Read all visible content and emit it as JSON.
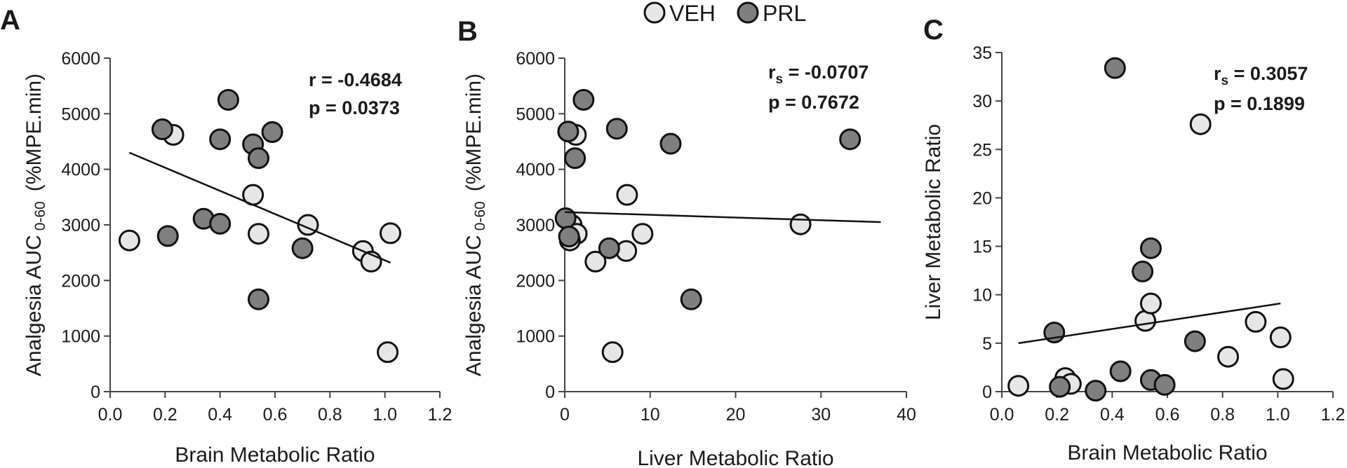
{
  "legend": [
    {
      "label": "VEH",
      "color": "#e6e6e6"
    },
    {
      "label": "PRL",
      "color": "#7f7f7f"
    }
  ],
  "chart_data": [
    {
      "panel": "A",
      "type": "scatter",
      "xlabel": "Brain Metabolic Ratio",
      "ylabel_main": "Analgesia AUC",
      "ylabel_sub": "0-60",
      "ylabel_units": "(%MPE.min)",
      "xlim": [
        0,
        1.2
      ],
      "ylim": [
        0,
        6000
      ],
      "xticks": [
        0,
        0.2,
        0.4,
        0.6,
        0.8,
        1,
        1.2
      ],
      "xtick_labels": [
        "0.0",
        "0.2",
        "0.4",
        "0.6",
        "0.8",
        "1.0",
        "1.2"
      ],
      "yticks": [
        0,
        1000,
        2000,
        3000,
        4000,
        5000,
        6000
      ],
      "ytick_labels": [
        "0",
        "1000",
        "2000",
        "3000",
        "4000",
        "5000",
        "6000"
      ],
      "stats": {
        "line1_prefix": "r",
        "line1_sub": "",
        "line1_value": " = -0.4684",
        "line2": "p = 0.0373"
      },
      "trendline": {
        "x": [
          0.07,
          1.02
        ],
        "y": [
          4300,
          2320
        ]
      },
      "series": [
        {
          "name": "VEH",
          "points": [
            [
              0.07,
              2720
            ],
            [
              0.23,
              4620
            ],
            [
              0.52,
              3540
            ],
            [
              0.54,
              2840
            ],
            [
              0.72,
              3000
            ],
            [
              0.92,
              2530
            ],
            [
              0.95,
              2340
            ],
            [
              1.02,
              2850
            ],
            [
              1.01,
              710
            ]
          ]
        },
        {
          "name": "PRL",
          "points": [
            [
              0.19,
              4720
            ],
            [
              0.21,
              2800
            ],
            [
              0.34,
              3110
            ],
            [
              0.4,
              3020
            ],
            [
              0.4,
              4540
            ],
            [
              0.43,
              5250
            ],
            [
              0.52,
              4450
            ],
            [
              0.54,
              4200
            ],
            [
              0.59,
              4670
            ],
            [
              0.7,
              2580
            ],
            [
              0.54,
              1660
            ]
          ]
        }
      ]
    },
    {
      "panel": "B",
      "type": "scatter",
      "xlabel": "Liver Metabolic Ratio",
      "ylabel_main": "Analgesia AUC",
      "ylabel_sub": "0-60",
      "ylabel_units": "(%MPE.min)",
      "xlim": [
        0,
        40
      ],
      "ylim": [
        0,
        6000
      ],
      "xticks": [
        0,
        10,
        20,
        30,
        40
      ],
      "xtick_labels": [
        "0",
        "10",
        "20",
        "30",
        "40"
      ],
      "yticks": [
        0,
        1000,
        2000,
        3000,
        4000,
        5000,
        6000
      ],
      "ytick_labels": [
        "0",
        "1000",
        "2000",
        "3000",
        "4000",
        "5000",
        "6000"
      ],
      "stats": {
        "line1_prefix": "r",
        "line1_sub": "s",
        "line1_value": " = -0.0707",
        "line2": "p = 0.7672"
      },
      "trendline": {
        "x": [
          0,
          37
        ],
        "y": [
          3230,
          3050
        ]
      },
      "series": [
        {
          "name": "VEH",
          "points": [
            [
              1.3,
              4620
            ],
            [
              0.8,
              3000
            ],
            [
              1.4,
              2840
            ],
            [
              0.6,
              2720
            ],
            [
              7.3,
              3540
            ],
            [
              9.1,
              2840
            ],
            [
              7.2,
              2530
            ],
            [
              3.6,
              2340
            ],
            [
              5.6,
              710
            ],
            [
              27.6,
              3010
            ]
          ]
        },
        {
          "name": "PRL",
          "points": [
            [
              0.4,
              4680
            ],
            [
              1.2,
              4200
            ],
            [
              2.2,
              5250
            ],
            [
              6.1,
              4730
            ],
            [
              12.4,
              4460
            ],
            [
              33.4,
              4540
            ],
            [
              0.1,
              3120
            ],
            [
              0.5,
              2790
            ],
            [
              5.2,
              2580
            ],
            [
              14.8,
              1660
            ]
          ]
        }
      ]
    },
    {
      "panel": "C",
      "type": "scatter",
      "xlabel": "Brain Metabolic Ratio",
      "ylabel_main": "Liver Metabolic Ratio",
      "ylabel_sub": "",
      "ylabel_units": "",
      "xlim": [
        0,
        1.2
      ],
      "ylim": [
        0,
        35
      ],
      "xticks": [
        0,
        0.2,
        0.4,
        0.6,
        0.8,
        1,
        1.2
      ],
      "xtick_labels": [
        "0.0",
        "0.2",
        "0.4",
        "0.6",
        "0.8",
        "1.0",
        "1.2"
      ],
      "yticks": [
        0,
        5,
        10,
        15,
        20,
        25,
        30,
        35
      ],
      "ytick_labels": [
        "0",
        "5",
        "10",
        "15",
        "20",
        "25",
        "30",
        "35"
      ],
      "stats": {
        "line1_prefix": "r",
        "line1_sub": "s",
        "line1_value": " = 0.3057",
        "line2": "p = 0.1899"
      },
      "trendline": {
        "x": [
          0.06,
          1.01
        ],
        "y": [
          5.0,
          9.1
        ]
      },
      "series": [
        {
          "name": "VEH",
          "points": [
            [
              0.06,
              0.6
            ],
            [
              0.23,
              1.4
            ],
            [
              0.25,
              0.8
            ],
            [
              0.52,
              7.3
            ],
            [
              0.54,
              9.1
            ],
            [
              0.72,
              27.6
            ],
            [
              0.82,
              3.6
            ],
            [
              0.92,
              7.2
            ],
            [
              1.01,
              5.6
            ],
            [
              1.02,
              1.3
            ]
          ]
        },
        {
          "name": "PRL",
          "points": [
            [
              0.19,
              6.1
            ],
            [
              0.21,
              0.5
            ],
            [
              0.34,
              0.1
            ],
            [
              0.41,
              33.4
            ],
            [
              0.43,
              2.1
            ],
            [
              0.51,
              12.4
            ],
            [
              0.54,
              14.8
            ],
            [
              0.54,
              1.2
            ],
            [
              0.59,
              0.7
            ],
            [
              0.7,
              5.2
            ]
          ]
        }
      ]
    }
  ]
}
